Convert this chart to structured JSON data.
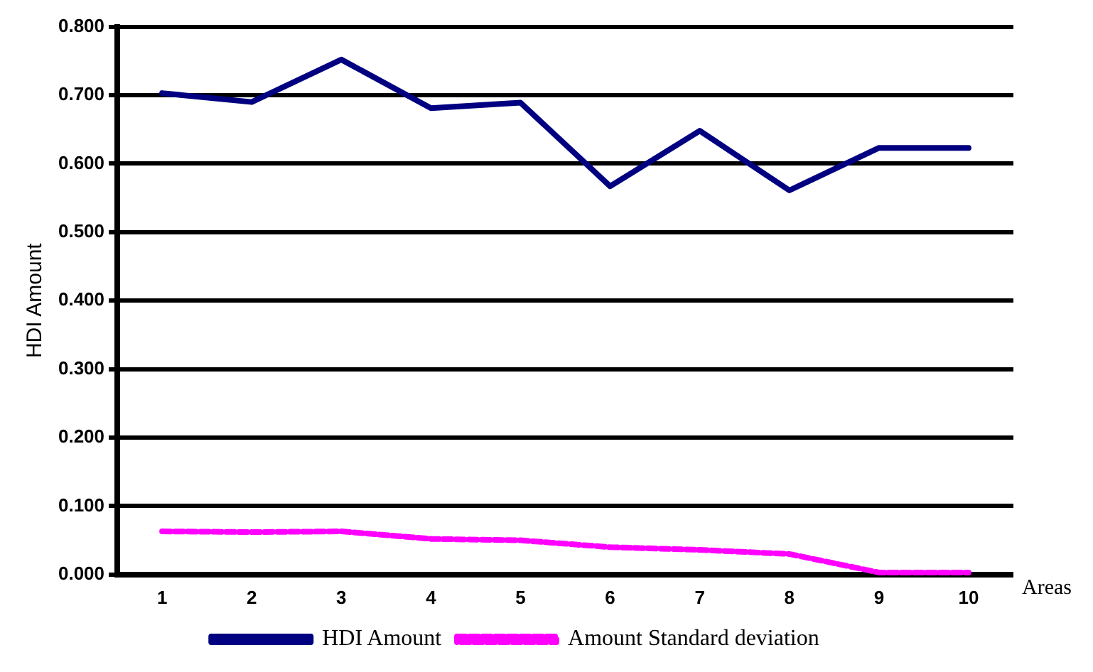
{
  "chart_data": {
    "type": "line",
    "xlabel": "Areas",
    "ylabel": "HDI Amount",
    "categories": [
      "1",
      "2",
      "3",
      "4",
      "5",
      "6",
      "7",
      "8",
      "9",
      "10"
    ],
    "series": [
      {
        "name": "HDI Amount",
        "color": "#000080",
        "values": [
          0.703,
          0.69,
          0.752,
          0.681,
          0.689,
          0.567,
          0.648,
          0.561,
          0.623,
          0.623
        ],
        "line_style": "solid"
      },
      {
        "name": "Amount Standard deviation",
        "color": "#ff00ff",
        "values": [
          0.063,
          0.062,
          0.063,
          0.052,
          0.05,
          0.04,
          0.036,
          0.03,
          0.003,
          0.003
        ],
        "line_style": "dashed"
      }
    ],
    "ylim": [
      0,
      0.8
    ],
    "yticks": [
      {
        "value": 0,
        "label": "0.000"
      },
      {
        "value": 0.1,
        "label": "0.100"
      },
      {
        "value": 0.2,
        "label": "0.200"
      },
      {
        "value": 0.3,
        "label": "0.300"
      },
      {
        "value": 0.4,
        "label": "0.400"
      },
      {
        "value": 0.5,
        "label": "0.500"
      },
      {
        "value": 0.6,
        "label": "0.600"
      },
      {
        "value": 0.7,
        "label": "0.700"
      },
      {
        "value": 0.8,
        "label": "0.800"
      }
    ],
    "grid": "y",
    "legend": "bottom",
    "marker": "none"
  }
}
